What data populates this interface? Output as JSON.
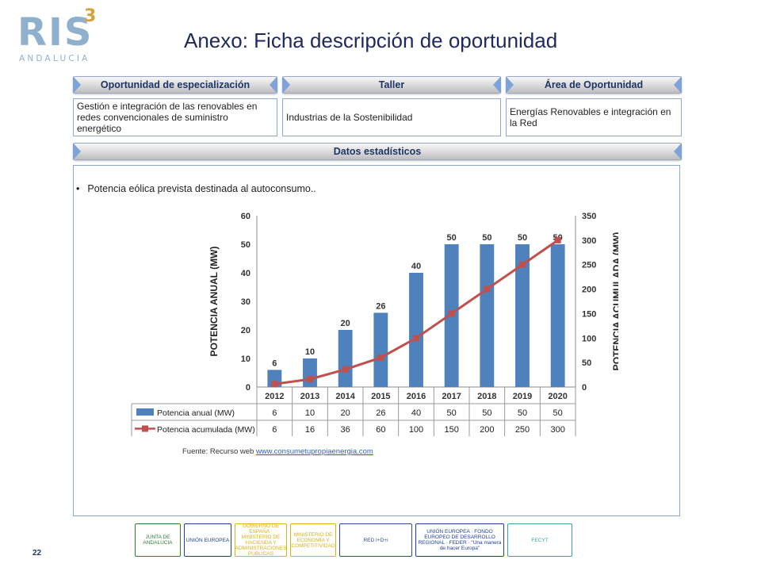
{
  "brand": {
    "logo_main": "RIS",
    "logo_superscript": "3",
    "logo_sub": "ANDALUCIA"
  },
  "title": "Anexo: Ficha descripción de oportunidad",
  "headers": {
    "oportunidad": "Oportunidad  de especialización",
    "taller": "Taller",
    "area": "Área de Oportunidad",
    "datos": "Datos  estadísticos"
  },
  "boxes": {
    "oportunidad": "Gestión e integración de las renovables en redes convencionales de suministro energético",
    "taller": "Industrias de la Sostenibilidad",
    "area": "Energías Renovables e integración en la Red"
  },
  "bullet": {
    "marker": "•",
    "text": "Potencia eólica prevista destinada al autoconsumo.."
  },
  "colors": {
    "bar": "#4f81bd",
    "line": "#c0504d",
    "header_text": "#1f3566",
    "title": "#1e2a5c"
  },
  "chart_data": {
    "type": "bar",
    "categories": [
      "2012",
      "2013",
      "2014",
      "2015",
      "2016",
      "2017",
      "2018",
      "2019",
      "2020"
    ],
    "series": [
      {
        "name": "Potencia anual (MW)",
        "type": "bar",
        "axis": "left",
        "values": [
          6,
          10,
          20,
          26,
          40,
          50,
          50,
          50,
          50
        ]
      },
      {
        "name": "Potencia acumulada (MW)",
        "type": "line",
        "axis": "right",
        "values": [
          6,
          16,
          36,
          60,
          100,
          150,
          200,
          250,
          300
        ]
      }
    ],
    "ylabel": "POTENCIA ANUAL (MW)",
    "y2label": "POTENCIA ACUMULADA (MW)",
    "ylim": [
      0,
      60
    ],
    "y2lim": [
      0,
      350
    ],
    "yticks": [
      "0",
      "10",
      "20",
      "30",
      "40",
      "50",
      "60"
    ],
    "y2ticks": [
      "0",
      "50",
      "100",
      "150",
      "200",
      "250",
      "300",
      "350"
    ],
    "data_table": true,
    "grid": false
  },
  "source": {
    "label": "Fuente: Recurso web ",
    "link": "www.consumetupropiaenergia.com"
  },
  "page_number": "22",
  "footer_logos": [
    {
      "name": "JUNTA DE ANDALUCIA",
      "color": "#2e7d32"
    },
    {
      "name": "UNIÓN EUROPEA",
      "color": "#1f3f99"
    },
    {
      "name": "GOBIERNO DE ESPAÑA · MINISTERIO DE HACIENDA Y ADMINISTRACIONES PÚBLICAS",
      "color": "#d8b21b"
    },
    {
      "name": "MINISTERIO DE ECONOMÍA Y COMPETITIVIDAD",
      "color": "#d8b21b"
    },
    {
      "name": "RED I+D+i",
      "color": "#2f4f8f"
    },
    {
      "name": "UNIÓN EUROPEA · FONDO EUROPEO DE DESARROLLO REGIONAL · FEDER · \"Una manera de hacer Europa\"",
      "color": "#1f3f99"
    },
    {
      "name": "FECYT",
      "color": "#3aa5a8"
    }
  ]
}
